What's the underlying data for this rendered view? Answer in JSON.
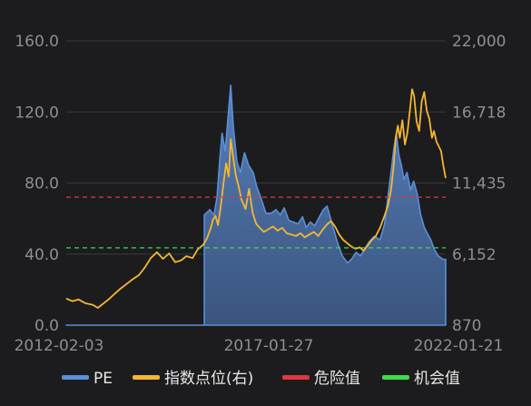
{
  "chart_data": {
    "type": "area",
    "title": "",
    "xlabel": "",
    "ylabel": "",
    "x_ticks": [
      "2012-02-03",
      "2017-01-27",
      "2022-01-21"
    ],
    "y_left": {
      "range": [
        0,
        160
      ],
      "ticks": [
        "0.0",
        "40.0",
        "80.0",
        "120.0",
        "160.0"
      ]
    },
    "y_right": {
      "range": [
        870,
        22000
      ],
      "ticks": [
        "870",
        "6,152",
        "11,435",
        "16,718",
        "22,000"
      ]
    },
    "grid": true,
    "legend_position": "bottom",
    "thresholds": [
      {
        "name": "危险值",
        "value": 72,
        "color": "#e0393e"
      },
      {
        "name": "机会值",
        "value": 43.5,
        "color": "#3ddc4a"
      }
    ],
    "series": [
      {
        "name": "PE",
        "axis": "left",
        "style": "area",
        "color": "#5b8fd8",
        "points": [
          [
            0.0,
            0
          ],
          [
            27.1,
            0
          ],
          [
            27.1,
            62
          ],
          [
            28.2,
            65
          ],
          [
            29.0,
            62
          ],
          [
            29.6,
            72
          ],
          [
            30.2,
            95
          ],
          [
            30.6,
            108
          ],
          [
            31.2,
            98
          ],
          [
            31.8,
            118
          ],
          [
            32.3,
            135
          ],
          [
            32.8,
            112
          ],
          [
            33.5,
            92
          ],
          [
            34.2,
            86
          ],
          [
            35.0,
            97
          ],
          [
            35.8,
            90
          ],
          [
            36.7,
            86
          ],
          [
            37.4,
            78
          ],
          [
            38.3,
            71
          ],
          [
            39.2,
            63
          ],
          [
            40.2,
            63
          ],
          [
            41.2,
            65
          ],
          [
            42.0,
            62
          ],
          [
            42.8,
            66
          ],
          [
            43.7,
            59
          ],
          [
            44.6,
            58
          ],
          [
            45.5,
            57
          ],
          [
            46.4,
            61
          ],
          [
            47.1,
            55
          ],
          [
            47.9,
            58
          ],
          [
            48.8,
            56
          ],
          [
            49.7,
            61
          ],
          [
            50.5,
            65
          ],
          [
            51.2,
            67
          ],
          [
            52.2,
            57
          ],
          [
            53.2,
            47
          ],
          [
            54.2,
            39
          ],
          [
            55.2,
            35
          ],
          [
            56.0,
            37
          ],
          [
            56.9,
            41
          ],
          [
            57.8,
            39
          ],
          [
            58.6,
            43
          ],
          [
            59.5,
            47
          ],
          [
            60.5,
            50
          ],
          [
            61.6,
            48
          ],
          [
            62.5,
            57
          ],
          [
            63.5,
            80
          ],
          [
            64.3,
            99
          ],
          [
            64.8,
            108
          ],
          [
            65.3,
            96
          ],
          [
            65.8,
            90
          ],
          [
            66.3,
            82
          ],
          [
            66.9,
            86
          ],
          [
            67.6,
            76
          ],
          [
            68.2,
            81
          ],
          [
            68.9,
            74
          ],
          [
            69.6,
            62
          ],
          [
            70.3,
            55
          ],
          [
            71.0,
            51
          ],
          [
            71.6,
            48
          ],
          [
            72.2,
            43
          ],
          [
            73.0,
            39
          ],
          [
            74.0,
            37
          ],
          [
            74.5,
            37
          ],
          [
            74.5,
            0
          ],
          [
            0.0,
            0
          ]
        ]
      },
      {
        "name": "指数点位(右)",
        "axis": "right",
        "style": "line",
        "color": "#f4b731",
        "points": [
          [
            0.0,
            2850
          ],
          [
            1.2,
            2650
          ],
          [
            2.4,
            2780
          ],
          [
            3.8,
            2500
          ],
          [
            5.2,
            2380
          ],
          [
            6.2,
            2150
          ],
          [
            7.1,
            2420
          ],
          [
            8.3,
            2780
          ],
          [
            9.5,
            3200
          ],
          [
            10.7,
            3600
          ],
          [
            11.9,
            3950
          ],
          [
            13.1,
            4300
          ],
          [
            14.3,
            4600
          ],
          [
            15.5,
            5200
          ],
          [
            16.6,
            5850
          ],
          [
            17.8,
            6300
          ],
          [
            19.0,
            5800
          ],
          [
            20.2,
            6200
          ],
          [
            21.4,
            5550
          ],
          [
            22.6,
            5700
          ],
          [
            23.6,
            6000
          ],
          [
            24.8,
            5850
          ],
          [
            25.8,
            6500
          ],
          [
            26.9,
            6850
          ],
          [
            27.6,
            7300
          ],
          [
            28.4,
            8100
          ],
          [
            28.8,
            8700
          ],
          [
            29.3,
            9000
          ],
          [
            29.8,
            8300
          ],
          [
            30.4,
            9900
          ],
          [
            30.9,
            11500
          ],
          [
            31.4,
            12900
          ],
          [
            31.9,
            11900
          ],
          [
            32.3,
            14700
          ],
          [
            32.8,
            13300
          ],
          [
            33.3,
            12000
          ],
          [
            33.9,
            11100
          ],
          [
            34.4,
            10200
          ],
          [
            35.2,
            9500
          ],
          [
            35.9,
            11000
          ],
          [
            36.6,
            9200
          ],
          [
            37.3,
            8400
          ],
          [
            38.0,
            8100
          ],
          [
            38.8,
            7800
          ],
          [
            39.7,
            8000
          ],
          [
            40.6,
            8200
          ],
          [
            41.5,
            7900
          ],
          [
            42.4,
            8100
          ],
          [
            43.3,
            7700
          ],
          [
            44.2,
            7600
          ],
          [
            45.1,
            7500
          ],
          [
            46.0,
            7700
          ],
          [
            46.8,
            7400
          ],
          [
            47.7,
            7600
          ],
          [
            48.6,
            7800
          ],
          [
            49.5,
            7500
          ],
          [
            50.4,
            8000
          ],
          [
            51.3,
            8400
          ],
          [
            52.0,
            8600
          ],
          [
            52.8,
            8200
          ],
          [
            53.6,
            7600
          ],
          [
            54.4,
            7200
          ],
          [
            55.2,
            6950
          ],
          [
            56.0,
            6700
          ],
          [
            56.8,
            6550
          ],
          [
            57.6,
            6650
          ],
          [
            58.4,
            6400
          ],
          [
            59.2,
            6800
          ],
          [
            60.0,
            7200
          ],
          [
            60.8,
            7500
          ],
          [
            61.6,
            8100
          ],
          [
            62.4,
            8900
          ],
          [
            63.2,
            9800
          ],
          [
            63.8,
            11000
          ],
          [
            64.3,
            12800
          ],
          [
            64.7,
            14800
          ],
          [
            65.1,
            15700
          ],
          [
            65.5,
            14800
          ],
          [
            66.0,
            16100
          ],
          [
            66.5,
            14300
          ],
          [
            67.0,
            15200
          ],
          [
            67.5,
            16900
          ],
          [
            67.9,
            18400
          ],
          [
            68.3,
            17900
          ],
          [
            68.8,
            16000
          ],
          [
            69.3,
            15300
          ],
          [
            69.8,
            17500
          ],
          [
            70.3,
            18200
          ],
          [
            70.8,
            16800
          ],
          [
            71.3,
            16200
          ],
          [
            71.8,
            14800
          ],
          [
            72.2,
            15300
          ],
          [
            72.7,
            14500
          ],
          [
            73.1,
            14200
          ],
          [
            73.6,
            13800
          ],
          [
            74.0,
            12800
          ],
          [
            74.5,
            11800
          ]
        ]
      }
    ]
  },
  "legend": {
    "items": [
      {
        "label": "PE",
        "color": "#5b8fd8"
      },
      {
        "label": "指数点位(右)",
        "color": "#f4b731"
      },
      {
        "label": "危险值",
        "color": "#e0393e"
      },
      {
        "label": "机会值",
        "color": "#3ddc4a"
      }
    ]
  }
}
